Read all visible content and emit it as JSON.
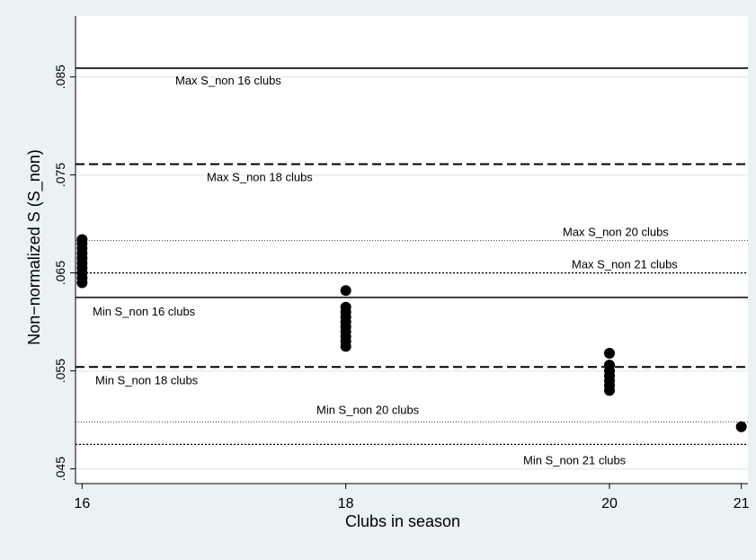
{
  "chart_data": {
    "type": "scatter",
    "title": "",
    "xlabel": "Clubs in season",
    "ylabel": "Non−normalized S (S_non)",
    "x_ticks": [
      16,
      18,
      20,
      21
    ],
    "x_tick_labels": [
      "16",
      "18",
      "20",
      "21"
    ],
    "y_ticks": [
      0.045,
      0.055,
      0.065,
      0.075,
      0.085
    ],
    "y_tick_labels": [
      ".045",
      ".055",
      ".065",
      ".075",
      ".085"
    ],
    "xlim": [
      15.95,
      21.05
    ],
    "ylim": [
      0.0435,
      0.0912
    ],
    "grid": "horizontal",
    "points": [
      {
        "x": 16,
        "y": 0.064
      },
      {
        "x": 16,
        "y": 0.0645
      },
      {
        "x": 16,
        "y": 0.065
      },
      {
        "x": 16,
        "y": 0.0655
      },
      {
        "x": 16,
        "y": 0.066
      },
      {
        "x": 16,
        "y": 0.0665
      },
      {
        "x": 16,
        "y": 0.067
      },
      {
        "x": 16,
        "y": 0.0675
      },
      {
        "x": 16,
        "y": 0.068
      },
      {
        "x": 16,
        "y": 0.0684
      },
      {
        "x": 18,
        "y": 0.0575
      },
      {
        "x": 18,
        "y": 0.058
      },
      {
        "x": 18,
        "y": 0.0585
      },
      {
        "x": 18,
        "y": 0.059
      },
      {
        "x": 18,
        "y": 0.0595
      },
      {
        "x": 18,
        "y": 0.06
      },
      {
        "x": 18,
        "y": 0.0605
      },
      {
        "x": 18,
        "y": 0.061
      },
      {
        "x": 18,
        "y": 0.0615
      },
      {
        "x": 18,
        "y": 0.0632
      },
      {
        "x": 20,
        "y": 0.053
      },
      {
        "x": 20,
        "y": 0.0535
      },
      {
        "x": 20,
        "y": 0.054
      },
      {
        "x": 20,
        "y": 0.0545
      },
      {
        "x": 20,
        "y": 0.055
      },
      {
        "x": 20,
        "y": 0.0556
      },
      {
        "x": 20,
        "y": 0.0568
      },
      {
        "x": 21,
        "y": 0.0493
      }
    ],
    "reference_lines": [
      {
        "label": "Max S_non 16 clubs",
        "y": 0.0859,
        "style": "solid"
      },
      {
        "label": "Max S_non 18 clubs",
        "y": 0.0761,
        "style": "dashed"
      },
      {
        "label": "Max S_non 20 clubs",
        "y": 0.0683,
        "style": "dotted-fine"
      },
      {
        "label": "Max S_non 21 clubs",
        "y": 0.065,
        "style": "dotted"
      },
      {
        "label": "Min S_non 16 clubs",
        "y": 0.0625,
        "style": "solid"
      },
      {
        "label": "Min S_non 18 clubs",
        "y": 0.0554,
        "style": "dashed"
      },
      {
        "label": "Min S_non 20 clubs",
        "y": 0.0498,
        "style": "dotted-fine"
      },
      {
        "label": "Min S_non 21 clubs",
        "y": 0.0475,
        "style": "dotted"
      }
    ]
  }
}
